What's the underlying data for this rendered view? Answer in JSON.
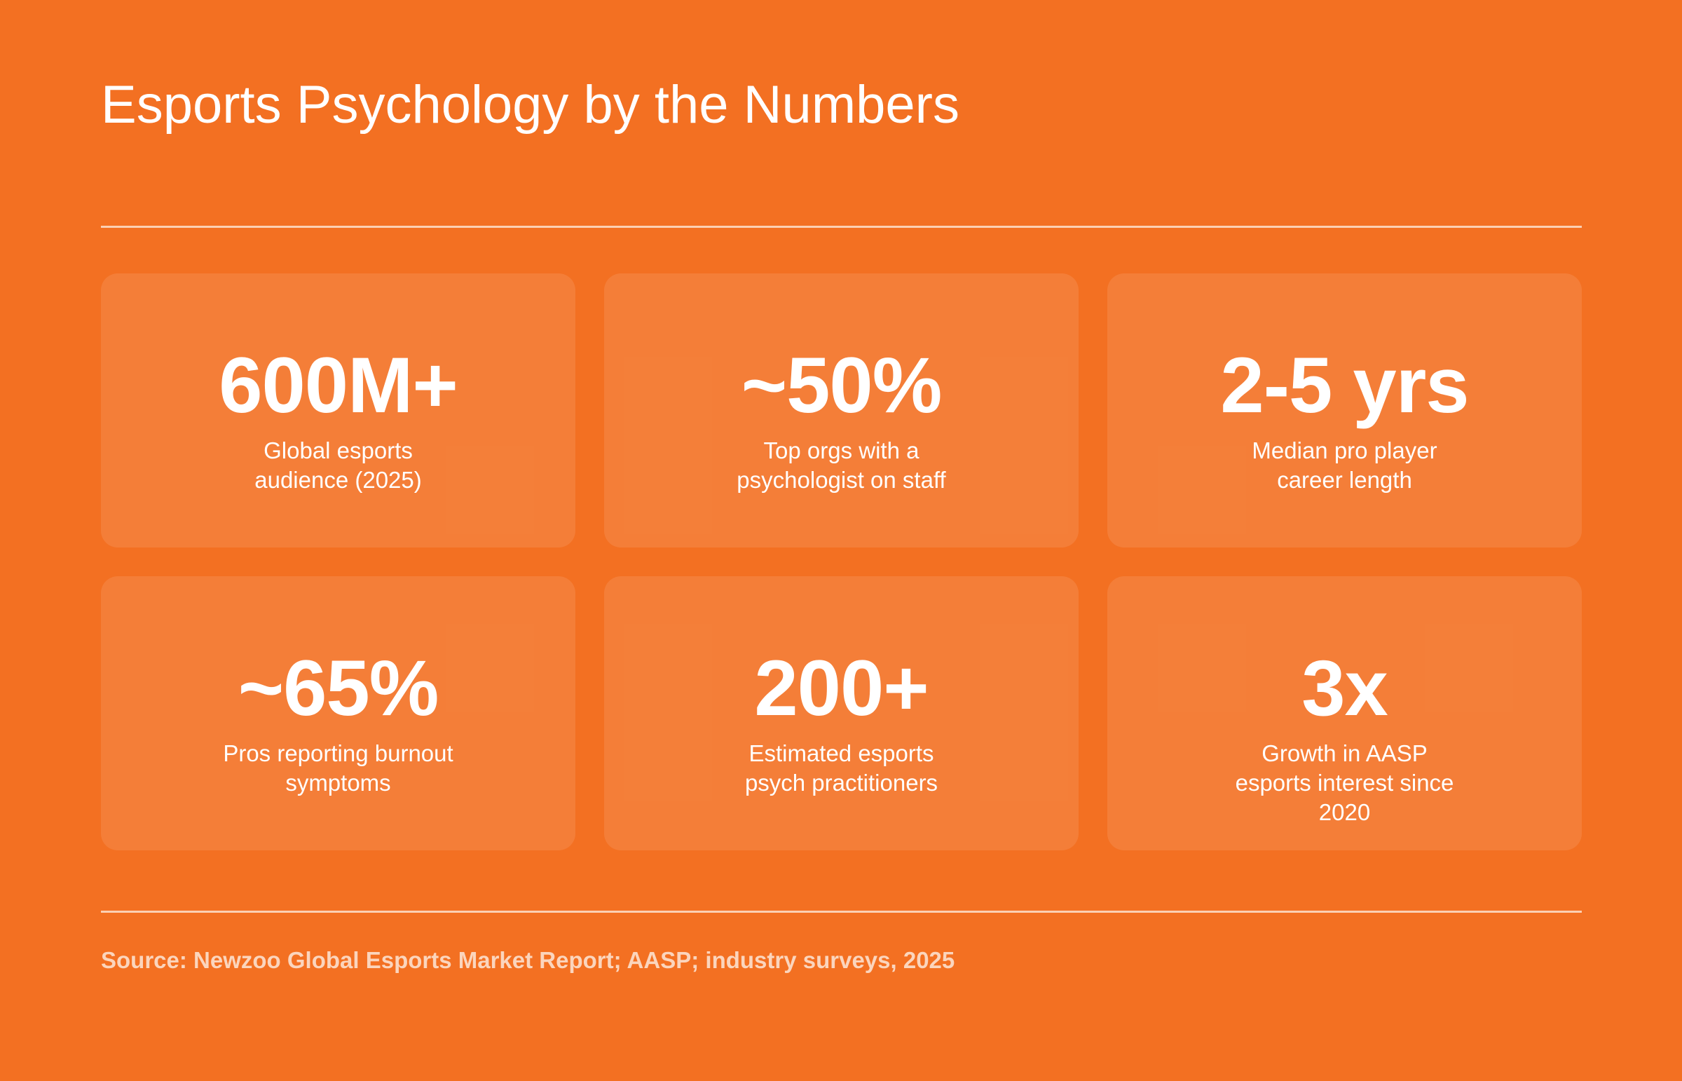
{
  "title": "Esports Psychology by the Numbers",
  "stats": [
    {
      "value": "600M+",
      "label": "Global esports audience (2025)"
    },
    {
      "value": "~50%",
      "label": "Top orgs with a psychologist on staff"
    },
    {
      "value": "2-5 yrs",
      "label": "Median pro player career length"
    },
    {
      "value": "~65%",
      "label": "Pros reporting burnout symptoms"
    },
    {
      "value": "200+",
      "label": "Estimated esports psych practitioners"
    },
    {
      "value": "3x",
      "label": "Growth in AASP esports interest since 2020"
    }
  ],
  "source": "Source: Newzoo Global Esports Market Report; AASP; industry surveys, 2025",
  "colors": {
    "background": "#f37022",
    "card": "#f47c36",
    "text": "#ffffff",
    "source_text": "#fbd5bd"
  }
}
